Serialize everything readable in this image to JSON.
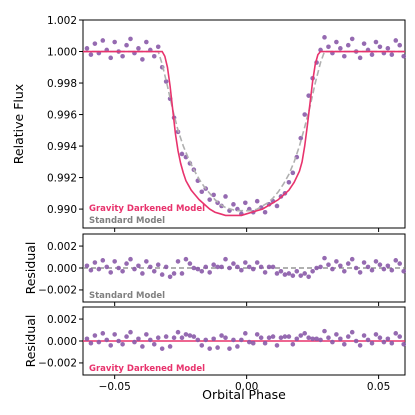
{
  "colors": {
    "points": "#8a5aa8",
    "gravity_model": "#e8336d",
    "standard_model": "#b0b0b0",
    "standard_label": "#808080",
    "residual_zero_standard": "#808080"
  },
  "chart_data": [
    {
      "type": "scatter",
      "panel": "light-curve",
      "ylabel": "Relative Flux",
      "xlabel": "",
      "xlim": [
        -0.062,
        0.06
      ],
      "ylim": [
        0.9888,
        1.002
      ],
      "yticks": [
        "0.990",
        "0.992",
        "0.994",
        "0.996",
        "0.998",
        "1.000",
        "1.002"
      ],
      "ytick_values": [
        0.99,
        0.992,
        0.994,
        0.996,
        0.998,
        1.0,
        1.002
      ],
      "grid": false,
      "legend": [
        "Gravity Darkened Model",
        "Standard Model"
      ],
      "legend_position": "bottom-left",
      "observations": {
        "x": [
          -0.0605,
          -0.059,
          -0.0575,
          -0.056,
          -0.0545,
          -0.053,
          -0.0515,
          -0.05,
          -0.0485,
          -0.047,
          -0.0455,
          -0.044,
          -0.0425,
          -0.041,
          -0.0395,
          -0.038,
          -0.0365,
          -0.035,
          -0.0335,
          -0.032,
          -0.0305,
          -0.029,
          -0.0275,
          -0.026,
          -0.0245,
          -0.023,
          -0.0215,
          -0.02,
          -0.0185,
          -0.017,
          -0.0155,
          -0.014,
          -0.0125,
          -0.011,
          -0.0095,
          -0.008,
          -0.0065,
          -0.005,
          -0.0035,
          -0.002,
          -0.0005,
          0.001,
          0.0025,
          0.004,
          0.0055,
          0.007,
          0.0085,
          0.01,
          0.0115,
          0.013,
          0.0145,
          0.016,
          0.0175,
          0.019,
          0.0205,
          0.022,
          0.0235,
          0.025,
          0.0265,
          0.028,
          0.0295,
          0.031,
          0.0325,
          0.034,
          0.0355,
          0.037,
          0.0385,
          0.04,
          0.0415,
          0.043,
          0.0445,
          0.046,
          0.0475,
          0.049,
          0.0505,
          0.052,
          0.0535,
          0.055,
          0.0565,
          0.058,
          0.0595
        ],
        "y": [
          1.0002,
          0.9998,
          1.0005,
          0.9999,
          1.0007,
          1.0001,
          0.9996,
          1.0006,
          1.0,
          0.9997,
          1.0004,
          1.0008,
          0.9999,
          1.0002,
          0.9995,
          1.0006,
          1.0001,
          0.9997,
          1.0003,
          0.999,
          0.9981,
          0.997,
          0.9958,
          0.9949,
          0.9935,
          0.9933,
          0.9929,
          0.9925,
          0.9918,
          0.9911,
          0.9913,
          0.9906,
          0.9909,
          0.9904,
          0.9902,
          0.9908,
          0.9899,
          0.9903,
          0.99,
          0.9897,
          0.9904,
          0.99,
          0.9898,
          0.9905,
          0.9901,
          0.9898,
          0.9903,
          0.9905,
          0.9902,
          0.9908,
          0.991,
          0.9917,
          0.9923,
          0.9933,
          0.9945,
          0.996,
          0.9972,
          0.9983,
          0.9993,
          1.0001,
          1.0009,
          1.0003,
          0.9999,
          1.0006,
          1.0002,
          0.9997,
          1.0004,
          1.0008,
          1.0,
          0.9996,
          1.0005,
          1.0001,
          0.9998,
          1.0006,
          1.0003,
          0.9999,
          1.0002,
          0.9998,
          1.0007,
          1.0004,
          0.9997
        ]
      },
      "series": [
        {
          "name": "Gravity Darkened Model",
          "x": [
            -0.062,
            -0.032,
            -0.031,
            -0.03,
            -0.029,
            -0.028,
            -0.027,
            -0.026,
            -0.025,
            -0.024,
            -0.023,
            -0.022,
            -0.021,
            -0.02,
            -0.019,
            -0.018,
            -0.016,
            -0.014,
            -0.012,
            -0.01,
            -0.008,
            -0.006,
            -0.004,
            -0.002,
            0.0,
            0.002,
            0.004,
            0.006,
            0.008,
            0.01,
            0.012,
            0.014,
            0.016,
            0.018,
            0.02,
            0.021,
            0.022,
            0.023,
            0.024,
            0.025,
            0.026,
            0.027,
            0.028,
            0.06
          ],
          "y": [
            1.0,
            1.0,
            0.9997,
            0.999,
            0.9978,
            0.9963,
            0.9948,
            0.9937,
            0.9929,
            0.9923,
            0.9918,
            0.9915,
            0.9912,
            0.991,
            0.9908,
            0.9906,
            0.9903,
            0.99,
            0.9898,
            0.9897,
            0.9896,
            0.9896,
            0.9896,
            0.9896,
            0.9897,
            0.9898,
            0.9899,
            0.99,
            0.9902,
            0.9904,
            0.9906,
            0.9909,
            0.9912,
            0.9917,
            0.9924,
            0.993,
            0.994,
            0.9953,
            0.9967,
            0.9981,
            0.9992,
            0.9998,
            1.0,
            1.0
          ]
        },
        {
          "name": "Standard Model",
          "x": [
            -0.062,
            -0.0335,
            -0.032,
            -0.03,
            -0.028,
            -0.026,
            -0.024,
            -0.022,
            -0.02,
            -0.018,
            -0.016,
            -0.014,
            -0.012,
            -0.01,
            -0.008,
            -0.006,
            -0.004,
            -0.002,
            0.0,
            0.002,
            0.004,
            0.006,
            0.008,
            0.01,
            0.012,
            0.014,
            0.016,
            0.018,
            0.02,
            0.022,
            0.024,
            0.026,
            0.028,
            0.0295,
            0.06
          ],
          "y": [
            1.0,
            1.0,
            0.9992,
            0.9978,
            0.9963,
            0.995,
            0.994,
            0.9932,
            0.9925,
            0.9919,
            0.9914,
            0.991,
            0.9906,
            0.9903,
            0.9901,
            0.99,
            0.9899,
            0.9899,
            0.9899,
            0.9899,
            0.99,
            0.9902,
            0.9904,
            0.9907,
            0.9911,
            0.9916,
            0.9922,
            0.993,
            0.994,
            0.9952,
            0.9965,
            0.998,
            0.9993,
            1.0,
            1.0
          ]
        }
      ]
    },
    {
      "type": "scatter",
      "panel": "residual-standard",
      "ylabel": "Residual",
      "xlabel": "",
      "xlim": [
        -0.062,
        0.06
      ],
      "ylim": [
        -0.0031,
        0.0031
      ],
      "yticks": [
        "−0.002",
        "0.000",
        "0.002"
      ],
      "ytick_values": [
        -0.002,
        0.0,
        0.002
      ],
      "legend": [
        "Standard Model"
      ],
      "legend_position": "bottom-left",
      "reference_line": 0,
      "observations": {
        "x": [
          -0.0605,
          -0.059,
          -0.0575,
          -0.056,
          -0.0545,
          -0.053,
          -0.0515,
          -0.05,
          -0.0485,
          -0.047,
          -0.0455,
          -0.044,
          -0.0425,
          -0.041,
          -0.0395,
          -0.038,
          -0.0365,
          -0.035,
          -0.0335,
          -0.032,
          -0.0305,
          -0.029,
          -0.0275,
          -0.026,
          -0.0245,
          -0.023,
          -0.0215,
          -0.02,
          -0.0185,
          -0.017,
          -0.0155,
          -0.014,
          -0.0125,
          -0.011,
          -0.0095,
          -0.008,
          -0.0065,
          -0.005,
          -0.0035,
          -0.002,
          -0.0005,
          0.001,
          0.0025,
          0.004,
          0.0055,
          0.007,
          0.0085,
          0.01,
          0.0115,
          0.013,
          0.0145,
          0.016,
          0.0175,
          0.019,
          0.0205,
          0.022,
          0.0235,
          0.025,
          0.0265,
          0.028,
          0.0295,
          0.031,
          0.0325,
          0.034,
          0.0355,
          0.037,
          0.0385,
          0.04,
          0.0415,
          0.043,
          0.0445,
          0.046,
          0.0475,
          0.049,
          0.0505,
          0.052,
          0.0535,
          0.055,
          0.0565,
          0.058,
          0.0595
        ],
        "y": [
          0.0002,
          -0.0002,
          0.0005,
          -0.0001,
          0.0007,
          0.0001,
          -0.0004,
          0.0006,
          0.0,
          -0.0003,
          0.0004,
          0.0008,
          -0.0001,
          0.0002,
          -0.0005,
          0.0006,
          0.0001,
          -0.0003,
          0.0003,
          -0.0006,
          0.0001,
          -0.0008,
          -0.0005,
          0.0006,
          -0.0005,
          0.0008,
          0.0004,
          0.0,
          -0.0001,
          -0.0003,
          0.0001,
          -0.0004,
          0.0003,
          0.0001,
          0.0001,
          0.0008,
          0.0,
          0.0004,
          0.0001,
          -0.0002,
          0.0005,
          0.0001,
          -0.0001,
          0.0005,
          0.0001,
          -0.0004,
          0.0001,
          0.0001,
          -0.0005,
          -0.0003,
          -0.0006,
          -0.0005,
          -0.0007,
          -0.0003,
          -0.0007,
          -0.0005,
          -0.0008,
          -0.0003,
          0.0,
          0.0001,
          0.0009,
          0.0003,
          -0.0001,
          0.0006,
          0.0002,
          -0.0003,
          0.0004,
          0.0008,
          0.0,
          -0.0004,
          0.0005,
          0.0001,
          -0.0002,
          0.0006,
          0.0003,
          -0.0001,
          0.0002,
          -0.0002,
          0.0007,
          0.0004,
          -0.0003
        ]
      }
    },
    {
      "type": "scatter",
      "panel": "residual-gravity",
      "ylabel": "Residual",
      "xlabel": "Orbital Phase",
      "xlim": [
        -0.062,
        0.06
      ],
      "ylim": [
        -0.0031,
        0.0031
      ],
      "yticks": [
        "−0.002",
        "0.000",
        "0.002"
      ],
      "ytick_values": [
        -0.002,
        0.0,
        0.002
      ],
      "xticks": [
        "−0.05",
        "0.00",
        "0.05"
      ],
      "xtick_values": [
        -0.05,
        0.0,
        0.05
      ],
      "legend": [
        "Gravity Darkened Model"
      ],
      "legend_position": "bottom-left",
      "reference_line": 0,
      "observations": {
        "x": [
          -0.0605,
          -0.059,
          -0.0575,
          -0.056,
          -0.0545,
          -0.053,
          -0.0515,
          -0.05,
          -0.0485,
          -0.047,
          -0.0455,
          -0.044,
          -0.0425,
          -0.041,
          -0.0395,
          -0.038,
          -0.0365,
          -0.035,
          -0.0335,
          -0.032,
          -0.0305,
          -0.029,
          -0.0275,
          -0.026,
          -0.0245,
          -0.023,
          -0.0215,
          -0.02,
          -0.0185,
          -0.017,
          -0.0155,
          -0.014,
          -0.0125,
          -0.011,
          -0.0095,
          -0.008,
          -0.0065,
          -0.005,
          -0.0035,
          -0.002,
          -0.0005,
          0.001,
          0.0025,
          0.004,
          0.0055,
          0.007,
          0.0085,
          0.01,
          0.0115,
          0.013,
          0.0145,
          0.016,
          0.0175,
          0.019,
          0.0205,
          0.022,
          0.0235,
          0.025,
          0.0265,
          0.028,
          0.0295,
          0.031,
          0.0325,
          0.034,
          0.0355,
          0.037,
          0.0385,
          0.04,
          0.0415,
          0.043,
          0.0445,
          0.046,
          0.0475,
          0.049,
          0.0505,
          0.052,
          0.0535,
          0.055,
          0.0565,
          0.058,
          0.0595
        ],
        "y": [
          0.0002,
          -0.0002,
          0.0005,
          -0.0001,
          0.0007,
          0.0001,
          -0.0004,
          0.0006,
          0.0,
          -0.0003,
          0.0004,
          0.0008,
          -0.0001,
          0.0002,
          -0.0005,
          0.0006,
          0.0001,
          -0.0003,
          0.0003,
          -0.0007,
          0.0004,
          -0.0005,
          0.0003,
          0.0008,
          0.0003,
          0.0006,
          0.0005,
          0.0004,
          0.0001,
          -0.0004,
          0.0001,
          -0.0007,
          0.0002,
          -0.0006,
          0.0005,
          0.0003,
          -0.0007,
          0.0001,
          -0.0005,
          0.0001,
          0.0007,
          -0.0001,
          -0.0002,
          0.0006,
          0.0003,
          -0.0002,
          0.0003,
          0.0004,
          -0.0004,
          0.0003,
          0.0004,
          0.0004,
          -0.0003,
          0.0002,
          0.0005,
          0.0007,
          0.0003,
          0.0002,
          0.0002,
          0.0001,
          0.0009,
          0.0003,
          -0.0001,
          0.0006,
          0.0002,
          -0.0003,
          0.0004,
          0.0008,
          0.0,
          -0.0004,
          0.0005,
          0.0001,
          -0.0002,
          0.0006,
          0.0003,
          -0.0001,
          0.0002,
          -0.0002,
          0.0007,
          0.0004,
          -0.0003
        ]
      }
    }
  ]
}
